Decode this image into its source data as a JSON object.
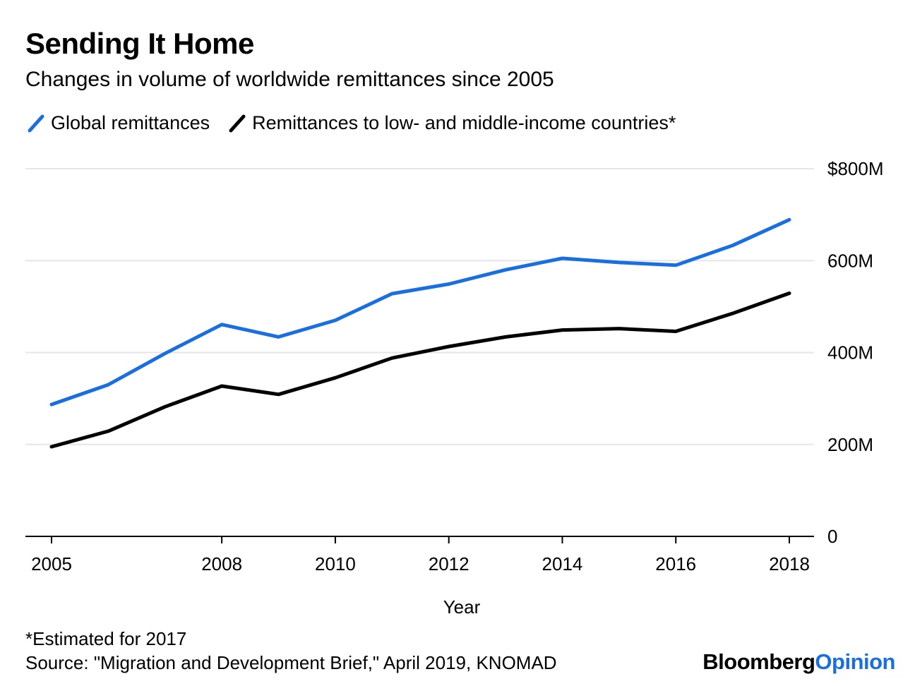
{
  "header": {
    "title": "Sending It Home",
    "subtitle": "Changes in volume of worldwide remittances since 2005"
  },
  "legend": [
    {
      "label": "Global remittances",
      "color": "#1a6fe0"
    },
    {
      "label": "Remittances to low- and middle-income countries*",
      "color": "#000000"
    }
  ],
  "chart_data": {
    "type": "line",
    "x": [
      2005,
      2006,
      2007,
      2008,
      2009,
      2010,
      2011,
      2012,
      2013,
      2014,
      2015,
      2016,
      2017,
      2018
    ],
    "series": [
      {
        "name": "Global remittances",
        "color": "#1a6fe0",
        "values": [
          287,
          330,
          398,
          461,
          434,
          470,
          528,
          549,
          580,
          605,
          596,
          590,
          633,
          689
        ]
      },
      {
        "name": "Remittances to low- and middle-income countries*",
        "color": "#000000",
        "values": [
          195,
          229,
          282,
          327,
          309,
          345,
          388,
          413,
          434,
          449,
          452,
          446,
          485,
          529
        ]
      }
    ],
    "xticks": [
      "2005",
      "2008",
      "2010",
      "2012",
      "2014",
      "2016",
      "2018"
    ],
    "yticks": [
      {
        "value": 0,
        "label": "0"
      },
      {
        "value": 200,
        "label": "200M"
      },
      {
        "value": 400,
        "label": "400M"
      },
      {
        "value": 600,
        "label": "600M"
      },
      {
        "value": 800,
        "label": "$800M"
      }
    ],
    "xlabel": "Year",
    "ylabel": "",
    "ylim": [
      0,
      800
    ],
    "xlim": [
      2005,
      2018
    ],
    "grid": true,
    "legend_position": "top-left"
  },
  "footer": {
    "note": "*Estimated for 2017",
    "source": "Source: \"Migration and Development Brief,\" April 2019, KNOMAD",
    "brand_part1": "Bloomberg",
    "brand_part2": "Opinion"
  }
}
